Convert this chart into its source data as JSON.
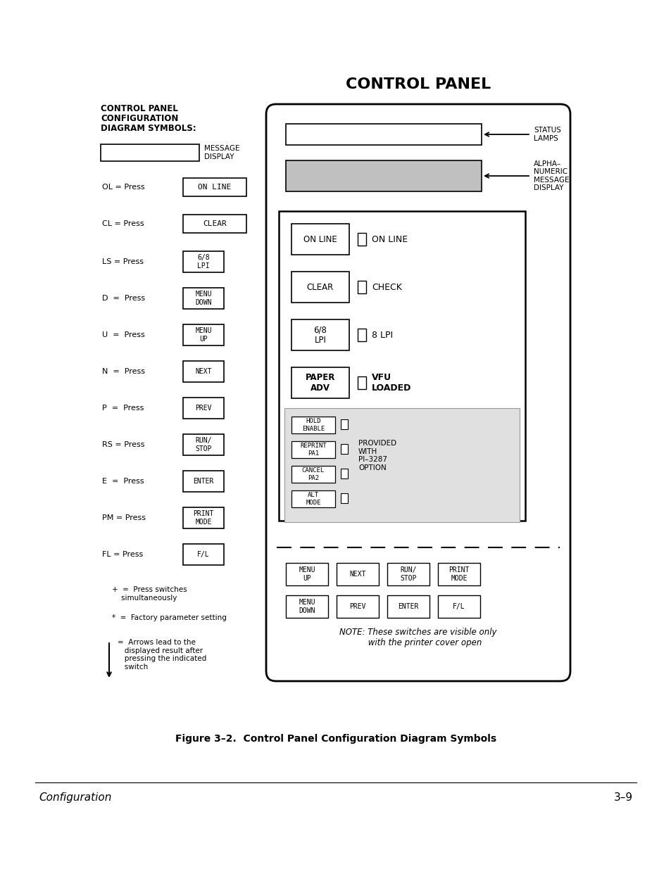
{
  "title": "CONTROL PANEL",
  "left_title_lines": [
    "CONTROL PANEL",
    "CONFIGURATION",
    "DIAGRAM SYMBOLS:"
  ],
  "fig_caption": "Figure 3–2.  Control Panel Configuration Diagram Symbols",
  "footer_left": "Configuration",
  "footer_right": "3–9",
  "left_rows": [
    {
      "prefix": "OL = Press",
      "btn": "ON LINE",
      "wide": true
    },
    {
      "prefix": "CL = Press",
      "btn": "CLEAR",
      "wide": true
    },
    {
      "prefix": "LS = Press",
      "btn": "6/8\nLPI",
      "wide": false
    },
    {
      "prefix": "D  =  Press",
      "btn": "MENU\nDOWN",
      "wide": false
    },
    {
      "prefix": "U  =  Press",
      "btn": "MENU\nUP",
      "wide": false
    },
    {
      "prefix": "N  =  Press",
      "btn": "NEXT",
      "wide": false
    },
    {
      "prefix": "P  =  Press",
      "btn": "PREV",
      "wide": false
    },
    {
      "prefix": "RS = Press",
      "btn": "RUN/\nSTOP",
      "wide": false
    },
    {
      "prefix": "E  =  Press",
      "btn": "ENTER",
      "wide": false
    },
    {
      "prefix": "PM = Press",
      "btn": "PRINT\nMODE",
      "wide": false
    },
    {
      "prefix": "FL = Press",
      "btn": "F/L",
      "wide": false
    }
  ],
  "main_panel_buttons": [
    {
      "left": "ON LINE",
      "right": "ON LINE"
    },
    {
      "left": "CLEAR",
      "right": "CHECK"
    },
    {
      "left": "6/8\nLPI",
      "right": "8 LPI"
    },
    {
      "left": "PAPER\nADV",
      "right": "VFU\nLOADED"
    }
  ],
  "sub_buttons": [
    "HOLD\nENABLE",
    "REPRINT\nPA1",
    "CANCEL\nPA2",
    "ALT\nMODE"
  ],
  "sub_label": "PROVIDED\nWITH\nPI–3287\nOPTION",
  "bottom_row1": [
    "MENU\nUP",
    "NEXT",
    "RUN/\nSTOP",
    "PRINT\nMODE"
  ],
  "bottom_row2": [
    "MENU\nDOWN",
    "PREV",
    "ENTER",
    "F/L"
  ],
  "status_lamps_label": "STATUS\nLAMPS",
  "alpha_label": "ALPHA–\nNUMERIC\nMESSAGE\nDISPLAY",
  "note_text": "NOTE: These switches are visible only\n     with the printer cover open"
}
